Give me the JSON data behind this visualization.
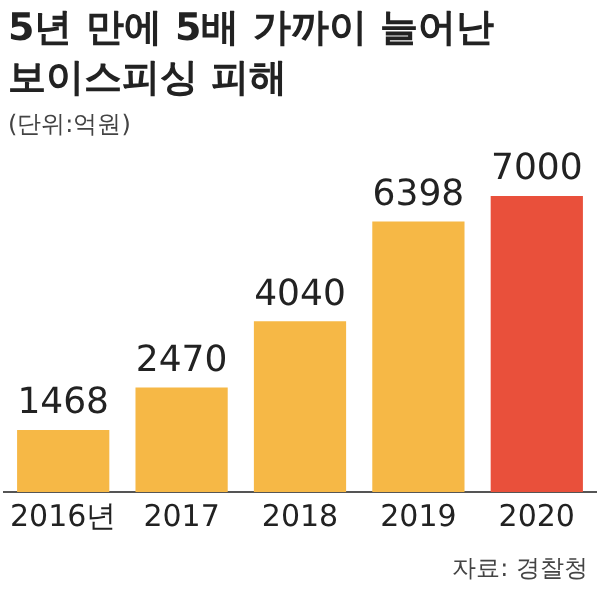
{
  "chart_data": {
    "type": "bar",
    "title": "5년 만에 5배 가까이 늘어난\n보이스피싱 피해",
    "subtitle": "(단위:억원)",
    "categories": [
      "2016년",
      "2017",
      "2018",
      "2019",
      "2020"
    ],
    "values": [
      1468,
      2470,
      4040,
      6398,
      7000
    ],
    "colors": [
      "#f6b846",
      "#f6b846",
      "#f6b846",
      "#f6b846",
      "#e9503b"
    ],
    "data_labels": true,
    "grid": false,
    "legend": false,
    "annotations": [
      "자료: 경찰청"
    ]
  }
}
